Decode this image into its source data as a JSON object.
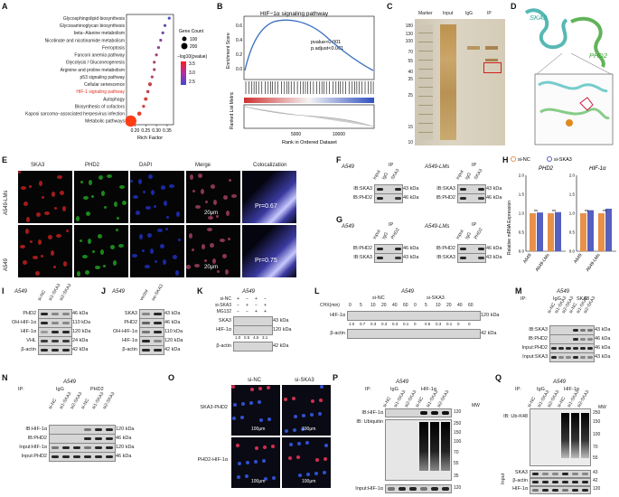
{
  "panels": [
    "A",
    "B",
    "C",
    "D",
    "E",
    "F",
    "G",
    "H",
    "I",
    "J",
    "K",
    "L",
    "M",
    "N",
    "O",
    "P",
    "Q"
  ],
  "panel_a": {
    "pathways": [
      "Glycosphingolipid biosynthesis",
      "Glycosaminoglycan biosynthesis",
      "beta−Alanine metabolism",
      "Nicotinate and nicotinamide metabolism",
      "Ferroptosis",
      "Fanconi anemia pathway",
      "Glycolysis / Gluconeogenesis",
      "Arginine and proline metabolism",
      "p53 signaling pathway",
      "Cellular senescence",
      "HIF-1 signaling pathway",
      "Autophagy",
      "Biosynthesis of cofactors",
      "Kaposi sarcoma−associated herpesvirus infection",
      "Metabolic pathways"
    ],
    "xticks": [
      "0.20",
      "0.25",
      "0.30",
      "0.35"
    ],
    "xlabel": "Rich Factor",
    "legend_count_title": "Gene Count",
    "legend_count": [
      "100",
      "200"
    ],
    "legend_p_title": "−log10(pvalue)",
    "legend_p": [
      "3.5",
      "3.0",
      "2.5"
    ],
    "highlight_color": "#e03020"
  },
  "chart_data": {
    "type": "scatter",
    "title": "",
    "xlabel": "Rich Factor",
    "ylabel": "",
    "xlim": [
      0.16,
      0.38
    ],
    "categories": [
      "Glycosphingolipid biosynthesis",
      "Glycosaminoglycan biosynthesis",
      "beta−Alanine metabolism",
      "Nicotinate and nicotinamide metabolism",
      "Ferroptosis",
      "Fanconi anemia pathway",
      "Glycolysis / Gluconeogenesis",
      "Arginine and proline metabolism",
      "p53 signaling pathway",
      "Cellular senescence",
      "HIF-1 signaling pathway",
      "Autophagy",
      "Biosynthesis of cofactors",
      "Kaposi sarcoma−associated herpesvirus infection",
      "Metabolic pathways"
    ],
    "x": [
      0.36,
      0.34,
      0.33,
      0.32,
      0.31,
      0.3,
      0.29,
      0.29,
      0.28,
      0.27,
      0.26,
      0.25,
      0.24,
      0.22,
      0.18
    ],
    "count": [
      10,
      12,
      8,
      9,
      10,
      11,
      14,
      12,
      13,
      25,
      18,
      22,
      16,
      30,
      220
    ],
    "neglog10p": [
      2.3,
      2.5,
      2.6,
      2.7,
      2.8,
      2.9,
      3.0,
      3.0,
      3.1,
      3.2,
      3.2,
      3.3,
      3.3,
      3.4,
      3.6
    ]
  },
  "panel_b": {
    "title": "HIF−1α signaling pathway",
    "stats": [
      "pvalue<0.001",
      "p.adjust<0.001"
    ],
    "ylabel_top": "Enrichment Score",
    "ylabel_bottom": "Ranked List Metric",
    "xlabel": "Rank in Ordered Dataset",
    "yticks": [
      "0.6",
      "0.4",
      "0.2",
      "0.0"
    ],
    "xticks": [
      "5000",
      "10000"
    ]
  },
  "panel_c": {
    "lanes": [
      "Marker",
      "Input",
      "IgG",
      "IP"
    ],
    "mw": [
      "180",
      "130",
      "100",
      "70",
      "55",
      "40",
      "35",
      "25",
      "15",
      "10"
    ],
    "box_color": "#d02020"
  },
  "panel_d": {
    "labels": [
      "SKA3",
      "PHD2"
    ]
  },
  "panel_e": {
    "cols": [
      "SKA3",
      "PHD2",
      "DAPI",
      "Merge",
      "Colocalization"
    ],
    "rows": [
      "A549-LMs",
      "A549"
    ],
    "scale": "20μm",
    "pr": [
      "Pr=0.67",
      "Pr=0.75"
    ]
  },
  "panel_f": {
    "left": {
      "cell": "A549",
      "ip": "IP",
      "lanes": [
        "Input",
        "IgG",
        "SKA3"
      ],
      "rows": [
        "IB:SKA3",
        "IB:PHD2"
      ],
      "kda": [
        "43 kDa",
        "46 kDa"
      ]
    },
    "right": {
      "cell": "A549-LMs",
      "ip": "IP",
      "lanes": [
        "Input",
        "IgG",
        "SKA3"
      ],
      "rows": [
        "IB:SKA3",
        "IB:PHD2"
      ],
      "kda": [
        "43 kDa",
        "46 kDa"
      ]
    }
  },
  "panel_g": {
    "left": {
      "cell": "A549",
      "ip": "IP",
      "lanes": [
        "Input",
        "IgG",
        "PHD2"
      ],
      "rows": [
        "IB:PHD2",
        "IB:SKA3"
      ],
      "kda": [
        "46 kDa",
        "43 kDa"
      ]
    },
    "right": {
      "cell": "A549-LMs",
      "ip": "IP",
      "lanes": [
        "Input",
        "IgG",
        "PHD2"
      ],
      "rows": [
        "IB:PHD2",
        "IB:SKA3"
      ],
      "kda": [
        "46 kDa",
        "43 kDa"
      ]
    }
  },
  "panel_h": {
    "legend": [
      "si-NC",
      "si-SKA3"
    ],
    "ylabel": "Relative mRNA Expression",
    "yticks": [
      "2.0",
      "1.5",
      "1.0",
      "0.5",
      "0.0"
    ],
    "sig": "ns",
    "charts": [
      {
        "title": "PHD2",
        "groups": [
          "A549",
          "A549-LMs"
        ],
        "values": [
          [
            1.0,
            1.02
          ],
          [
            1.0,
            1.03
          ]
        ]
      },
      {
        "title": "HIF-1α",
        "groups": [
          "A549",
          "A549-LMs"
        ],
        "values": [
          [
            1.0,
            1.08
          ],
          [
            1.0,
            1.12
          ]
        ]
      }
    ],
    "colors": {
      "nc": "#e8904a",
      "ska3": "#5560c0"
    }
  },
  "panel_i": {
    "cell": "A549",
    "lanes": [
      "si-NC",
      "si1-SKA3",
      "si2-SKA3"
    ],
    "rows": [
      "PHD2",
      "OH-HIF-1α",
      "HIF-1α",
      "VHL",
      "β-actin"
    ],
    "kda": [
      "46 kDa",
      "110 kDa",
      "120 kDa",
      "24 kDa",
      "42 kDa"
    ]
  },
  "panel_j": {
    "cell": "A549",
    "lanes": [
      "vector",
      "oe-SKA3"
    ],
    "rows": [
      "SKA3",
      "PHD2",
      "OH-HIF-1α",
      "HIF-1α",
      "β-actin"
    ],
    "kda": [
      "43 kDa",
      "46 kDa",
      "110 kDa",
      "120 kDa",
      "42 kDa"
    ]
  },
  "panel_k": {
    "cell": "A549",
    "conds": [
      {
        "name": "si-NC",
        "vals": [
          "+",
          "−",
          "+",
          "−"
        ]
      },
      {
        "name": "si-SKA3",
        "vals": [
          "−",
          "+",
          "−",
          "+"
        ]
      },
      {
        "name": "MG132",
        "vals": [
          "−",
          "−",
          "+",
          "+"
        ]
      }
    ],
    "rows": [
      "SKA3",
      "HIF-1α",
      "β-actin"
    ],
    "kda": [
      "43 kDa",
      "120 kDa",
      "42 kDa"
    ],
    "quant": [
      "1.0",
      "0.5",
      "4.5",
      "3.1"
    ]
  },
  "panel_l": {
    "cell": "A549",
    "groups": [
      "si-NC",
      "si-SKA3"
    ],
    "chx_label": "CHX(min)",
    "times": [
      "0",
      "5",
      "10",
      "20",
      "40",
      "60",
      "0",
      "5",
      "10",
      "20",
      "40",
      "60"
    ],
    "rows": [
      "HIF-1α",
      "β-actin"
    ],
    "kda": [
      "120 kDa",
      "42 kDa"
    ],
    "quant": [
      "1.0",
      "0.7",
      "0.3",
      "0.3",
      "0.3",
      "0.1",
      "0",
      "0.5",
      "0.3",
      "0.1",
      "0",
      "0"
    ]
  },
  "panel_m": {
    "cell": "A549",
    "ip_label": "IP:",
    "ip_groups": [
      "IgG",
      "SKA3"
    ],
    "lanes": [
      "si-NC",
      "si1-SKA3",
      "si2-SKA3",
      "si-NC",
      "si1-SKA3",
      "si2-SKA3"
    ],
    "rows": [
      "IB:SKA3",
      "IB:PHD2",
      "Input:PHD2",
      "Input:SKA3"
    ],
    "kda": [
      "43 kDa",
      "46 kDa",
      "46 kDa",
      "43 kDa"
    ]
  },
  "panel_n": {
    "cell": "A549",
    "ip_label": "IP:",
    "ip_groups": [
      "IgG",
      "PHD2"
    ],
    "lanes": [
      "si-NC",
      "si1-SKA3",
      "si2-SKA3",
      "si-NC",
      "si1-SKA3",
      "si2-SKA3"
    ],
    "rows": [
      "IB:HIF-1α",
      "IB:PHD2",
      "Input:HIF-1α",
      "Input:PHD2"
    ],
    "kda": [
      "120 kDa",
      "46 kDa",
      "120 kDa",
      "46 kDa"
    ]
  },
  "panel_o": {
    "cols": [
      "si-NC",
      "si-SKA3"
    ],
    "rows": [
      "SKA3-PHD2",
      "PHD2-HIF-1α"
    ],
    "scale": "100μm"
  },
  "panel_p": {
    "cell": "A549",
    "ip_label": "IP:",
    "ip_groups": [
      "IgG",
      "HIF-1α"
    ],
    "lanes": [
      "si-NC",
      "si1-SKA3",
      "si2-SKA3",
      "si-NC",
      "si1-SKA3",
      "si2-SKA3"
    ],
    "rows": [
      "IB:HIF-1α",
      "IB:  Ubiquitin",
      "Input:HIF-1α"
    ],
    "mw_label": "MW",
    "mw": [
      "120",
      "250",
      "150",
      "100",
      "70",
      "55",
      "35",
      "120"
    ]
  },
  "panel_q": {
    "cell": "A549",
    "ip_label": "IP:",
    "ip_groups": [
      "IgG",
      "HIF-1α"
    ],
    "lanes": [
      "si-NC",
      "si1-SKA3",
      "si2-SKA3",
      "si-NC",
      "si1-SKA3",
      "si2-SKA3"
    ],
    "rows": [
      "IB:  Ub-K48",
      "SKA3",
      "β-actin",
      "HIF-1α"
    ],
    "input_label": "Input",
    "mw_label": "MW",
    "mw": [
      "250",
      "150",
      "100",
      "70",
      "55",
      "43",
      "42",
      "120"
    ]
  }
}
